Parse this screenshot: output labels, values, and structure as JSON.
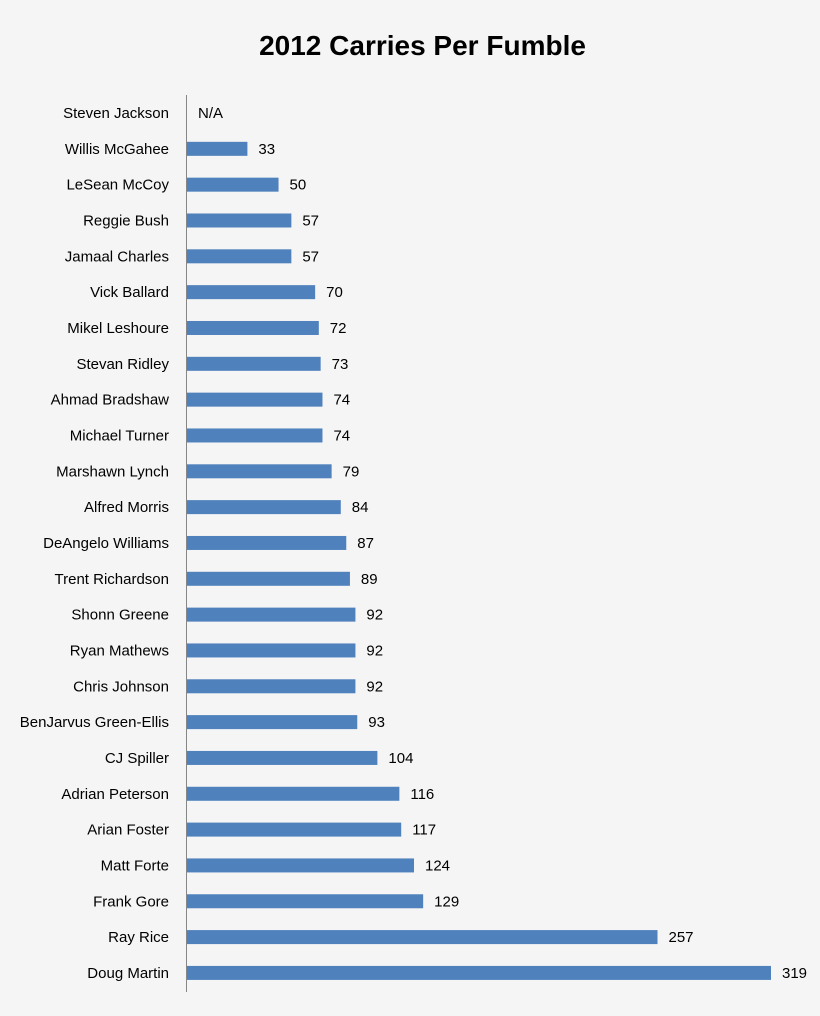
{
  "chart_data": {
    "type": "bar",
    "orientation": "horizontal",
    "title": "2012 Carries Per Fumble",
    "xlabel": "",
    "ylabel": "",
    "xlim": [
      0,
      319
    ],
    "grid": false,
    "bar_color": "#4f81bd",
    "categories": [
      "Steven Jackson",
      "Willis McGahee",
      "LeSean McCoy",
      "Reggie Bush",
      "Jamaal Charles",
      "Vick Ballard",
      "Mikel Leshoure",
      "Stevan Ridley",
      "Ahmad Bradshaw",
      "Michael Turner",
      "Marshawn Lynch",
      "Alfred Morris",
      "DeAngelo Williams",
      "Trent Richardson",
      "Shonn Greene",
      "Ryan Mathews",
      "Chris Johnson",
      "BenJarvus Green-Ellis",
      "CJ Spiller",
      "Adrian Peterson",
      "Arian Foster",
      "Matt Forte",
      "Frank Gore",
      "Ray Rice",
      "Doug Martin"
    ],
    "values": [
      null,
      33,
      50,
      57,
      57,
      70,
      72,
      73,
      74,
      74,
      79,
      84,
      87,
      89,
      92,
      92,
      92,
      93,
      104,
      116,
      117,
      124,
      129,
      257,
      319
    ],
    "value_labels": [
      "N/A",
      "33",
      "50",
      "57",
      "57",
      "70",
      "72",
      "73",
      "74",
      "74",
      "79",
      "84",
      "87",
      "89",
      "92",
      "92",
      "92",
      "93",
      "104",
      "116",
      "117",
      "124",
      "129",
      "257",
      "319"
    ]
  }
}
